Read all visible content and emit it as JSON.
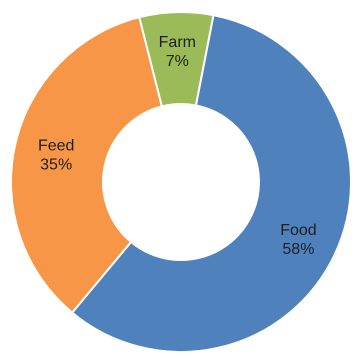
{
  "chart_data": {
    "type": "pie",
    "style": "donut",
    "title": "",
    "slices": [
      {
        "label": "Food",
        "value": 58,
        "percent_label": "58%",
        "color": "#4f81bd"
      },
      {
        "label": "Feed",
        "value": 35,
        "percent_label": "35%",
        "color": "#f79646"
      },
      {
        "label": "Farm",
        "value": 7,
        "percent_label": "7%",
        "color": "#9bbb59"
      }
    ],
    "start_angle_deg": 11,
    "direction": "clockwise",
    "legend": "none",
    "slice_border_color": "#ffffff"
  }
}
